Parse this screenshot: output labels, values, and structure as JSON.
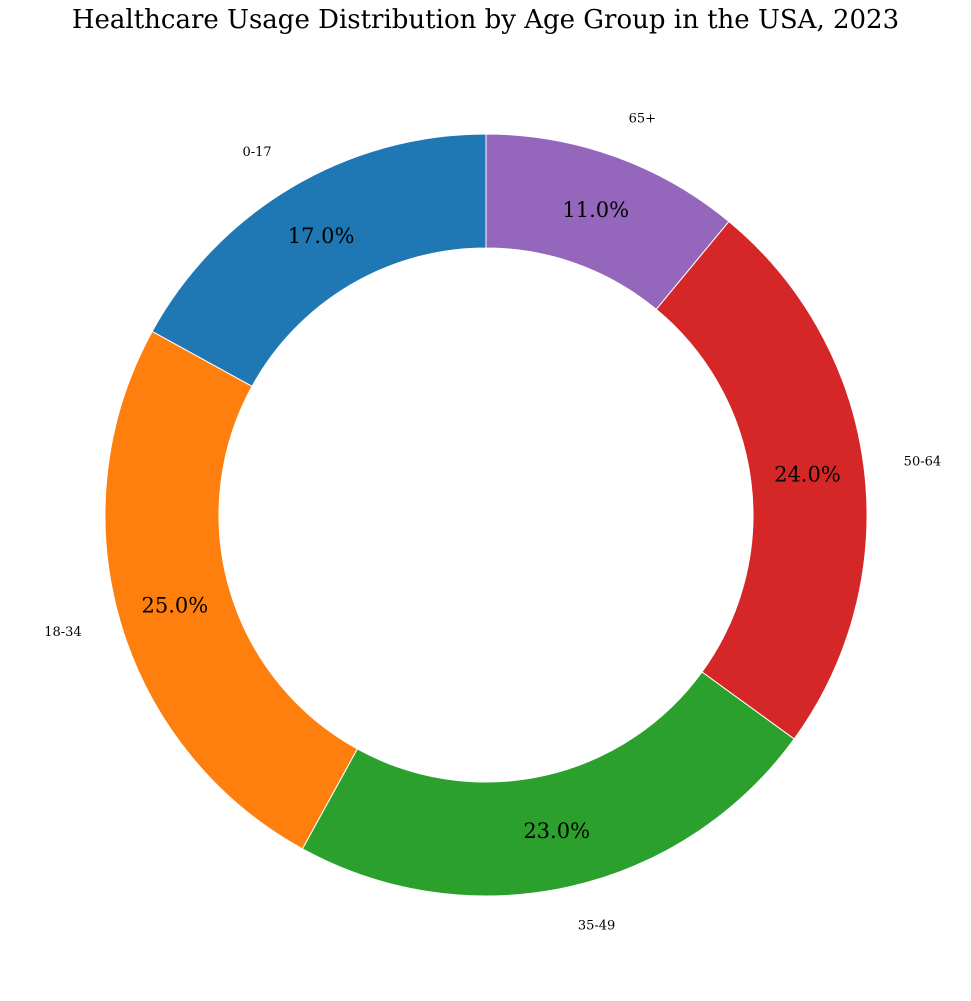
{
  "chart_data": {
    "type": "pie",
    "title": "Healthcare Usage Distribution by Age Group in the USA, 2023",
    "categories": [
      "0-17",
      "18-34",
      "35-49",
      "50-64",
      "65+"
    ],
    "values": [
      17.0,
      25.0,
      23.0,
      24.0,
      11.0
    ],
    "value_labels": [
      "17.0%",
      "25.0%",
      "23.0%",
      "24.0%",
      "11.0%"
    ],
    "colors": [
      "#1f77b4",
      "#ff7f0e",
      "#2ca02c",
      "#d62728",
      "#9467bd"
    ],
    "donut": true,
    "start_angle_deg": 90,
    "direction": "counterclockwise"
  }
}
